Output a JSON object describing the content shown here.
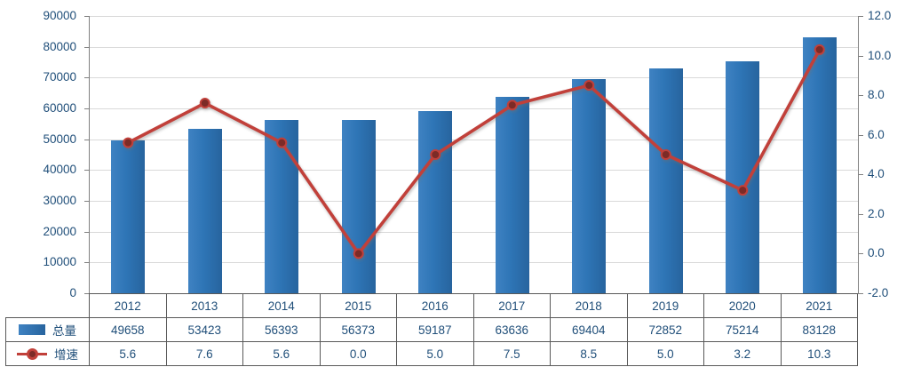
{
  "chart_data": {
    "type": "bar",
    "subtype": "combo-bar-line",
    "categories": [
      "2012",
      "2013",
      "2014",
      "2015",
      "2016",
      "2017",
      "2018",
      "2019",
      "2020",
      "2021"
    ],
    "series": [
      {
        "name": "总量",
        "type": "bar",
        "axis": "left",
        "values": [
          49658,
          53423,
          56393,
          56373,
          59187,
          63636,
          69404,
          72852,
          75214,
          83128
        ]
      },
      {
        "name": "增速",
        "type": "line",
        "axis": "right",
        "values": [
          5.6,
          7.6,
          5.6,
          0.0,
          5.0,
          7.5,
          8.5,
          5.0,
          3.2,
          10.3
        ]
      }
    ],
    "title": "",
    "xlabel": "",
    "ylabel": "",
    "grid": true,
    "legend_position": "data-table-left",
    "left_axis": {
      "min": 0,
      "max": 90000,
      "step": 10000,
      "tick_labels": [
        "0",
        "10000",
        "20000",
        "30000",
        "40000",
        "50000",
        "60000",
        "70000",
        "80000",
        "90000"
      ]
    },
    "right_axis": {
      "min": -2,
      "max": 12,
      "step": 2,
      "tick_labels": [
        "-2.0",
        "0.0",
        "2.0",
        "4.0",
        "6.0",
        "8.0",
        "10.0",
        "12.0"
      ]
    },
    "table": {
      "header": [
        "2012",
        "2013",
        "2014",
        "2015",
        "2016",
        "2017",
        "2018",
        "2019",
        "2020",
        "2021"
      ],
      "rows": [
        {
          "legend": "总量",
          "values": [
            "49658",
            "53423",
            "56393",
            "56373",
            "59187",
            "63636",
            "69404",
            "72852",
            "75214",
            "83128"
          ]
        },
        {
          "legend": "增速",
          "values": [
            "5.6",
            "7.6",
            "5.6",
            "0.0",
            "5.0",
            "7.5",
            "8.5",
            "5.0",
            "3.2",
            "10.3"
          ]
        }
      ]
    },
    "colors": {
      "bar": "#2E75B6",
      "line": "#C1403A",
      "marker_fill": "#7C2B27",
      "axis_text": "#1F4E79",
      "grid": "#D9D9D9",
      "axis_line": "#808080",
      "table_border": "#595959"
    }
  }
}
